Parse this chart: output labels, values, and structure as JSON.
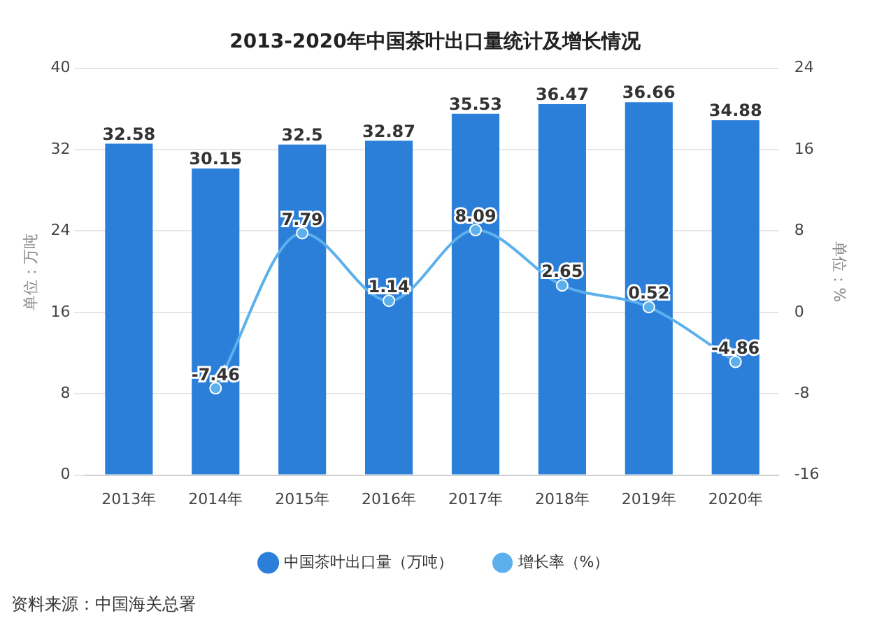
{
  "chart_data": {
    "type": "bar",
    "title": "2013-2020年中国茶叶出口量统计及增长情况",
    "ylabel": "单位：万吨",
    "y2label": "单位：%",
    "categories": [
      "2013年",
      "2014年",
      "2015年",
      "2016年",
      "2017年",
      "2018年",
      "2019年",
      "2020年"
    ],
    "series": [
      {
        "name": "中国茶叶出口量（万吨）",
        "color": "#2b7fd8",
        "values": [
          32.58,
          30.15,
          32.5,
          32.87,
          35.53,
          36.47,
          36.66,
          34.88
        ]
      },
      {
        "name": "增长率（%）",
        "type": "line",
        "axis": "y2",
        "color": "#5cb0ec",
        "marker": "circle",
        "values": [
          null,
          -7.46,
          7.79,
          1.14,
          8.09,
          2.65,
          0.52,
          -4.86
        ]
      }
    ],
    "ylim": [
      0,
      40
    ],
    "yticks": [
      0,
      8,
      16,
      24,
      32,
      40
    ],
    "y2lim": [
      -16,
      24
    ],
    "y2ticks": [
      -16,
      -8,
      0,
      8,
      16,
      24
    ],
    "grid": "y",
    "legend": "bottom",
    "data_labels": true,
    "annotations": [
      "资料来源：中国海关总署"
    ]
  }
}
